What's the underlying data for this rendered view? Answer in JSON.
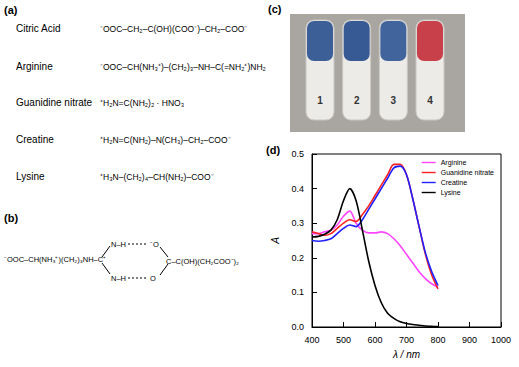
{
  "figure": {
    "a": {
      "label": "(a)",
      "compounds": [
        {
          "name": "Citric Acid",
          "structure": "⁻OOC–CH₂–C(OH)(COO⁻)–CH₂–COO⁻"
        },
        {
          "name": "Arginine",
          "structure": "⁻OOC–CH(NH₃⁺)–(CH₂)₃–NH–C(=NH₂⁺)NH₂"
        },
        {
          "name": "Guanidine nitrate",
          "structure": "⁺H₂N=C(NH₂)₂ · HNO₃"
        },
        {
          "name": "Creatine",
          "structure": "⁺H₂N=C(NH₂)–N(CH₃)–CH₂–COO⁻"
        },
        {
          "name": "Lysine",
          "structure": "⁺H₃N–(CH₂)₄–CH(NH₂)–COO⁻"
        }
      ]
    },
    "b": {
      "label": "(b)",
      "arginine": "⁻OOC–CH(NH₃⁺)(CH₂)₃NH–C⁺",
      "donors": [
        "N–H",
        "N–H"
      ],
      "acceptors": [
        "⁻O",
        "O"
      ],
      "citrate": "C–C(OH)(CH₂COO⁻)₂"
    },
    "c": {
      "label": "(c)",
      "tubes": [
        {
          "label": "1",
          "color": "#3b5f96"
        },
        {
          "label": "2",
          "color": "#375a94"
        },
        {
          "label": "3",
          "color": "#41649c"
        },
        {
          "label": "4",
          "color": "#c8404a"
        }
      ]
    },
    "d": {
      "label": "(d)"
    }
  },
  "chart_data": {
    "type": "line",
    "xlabel": "λ / nm",
    "ylabel": "A",
    "xlim": [
      400,
      1000
    ],
    "xticks": [
      400,
      500,
      600,
      700,
      800,
      900,
      1000
    ],
    "ylim": [
      0,
      0.5
    ],
    "yticks": [
      {
        "value": 0,
        "label": "0.0"
      },
      0.1,
      0.2,
      0.3,
      0.4,
      0.5
    ],
    "grid": false,
    "legend": "upper right",
    "x": [
      400,
      420,
      440,
      460,
      480,
      500,
      520,
      540,
      560,
      580,
      600,
      620,
      640,
      660,
      680,
      700,
      720,
      740,
      760,
      780,
      800
    ],
    "series": [
      {
        "name": "Arginine",
        "color": "#ff44ff",
        "values": [
          0.27,
          0.27,
          0.275,
          0.28,
          0.295,
          0.32,
          0.335,
          0.3,
          0.28,
          0.272,
          0.272,
          0.275,
          0.27,
          0.255,
          0.235,
          0.21,
          0.185,
          0.16,
          0.14,
          0.125,
          0.115
        ]
      },
      {
        "name": "Guanidine nitrate",
        "color": "#ff2020",
        "values": [
          0.275,
          0.27,
          0.265,
          0.27,
          0.285,
          0.3,
          0.31,
          0.305,
          0.325,
          0.35,
          0.38,
          0.41,
          0.44,
          0.47,
          0.47,
          0.44,
          0.37,
          0.29,
          0.21,
          0.15,
          0.11
        ]
      },
      {
        "name": "Creatine",
        "color": "#2020ff",
        "values": [
          0.25,
          0.248,
          0.25,
          0.255,
          0.27,
          0.285,
          0.295,
          0.29,
          0.31,
          0.34,
          0.37,
          0.4,
          0.43,
          0.46,
          0.465,
          0.44,
          0.37,
          0.29,
          0.215,
          0.16,
          0.12
        ]
      },
      {
        "name": "Lysine",
        "color": "#000000",
        "values": [
          0.26,
          0.262,
          0.268,
          0.28,
          0.31,
          0.365,
          0.4,
          0.365,
          0.28,
          0.19,
          0.12,
          0.07,
          0.04,
          0.025,
          0.015,
          0.01,
          0.007,
          0.005,
          0.003,
          0.002,
          0.001
        ]
      }
    ]
  }
}
